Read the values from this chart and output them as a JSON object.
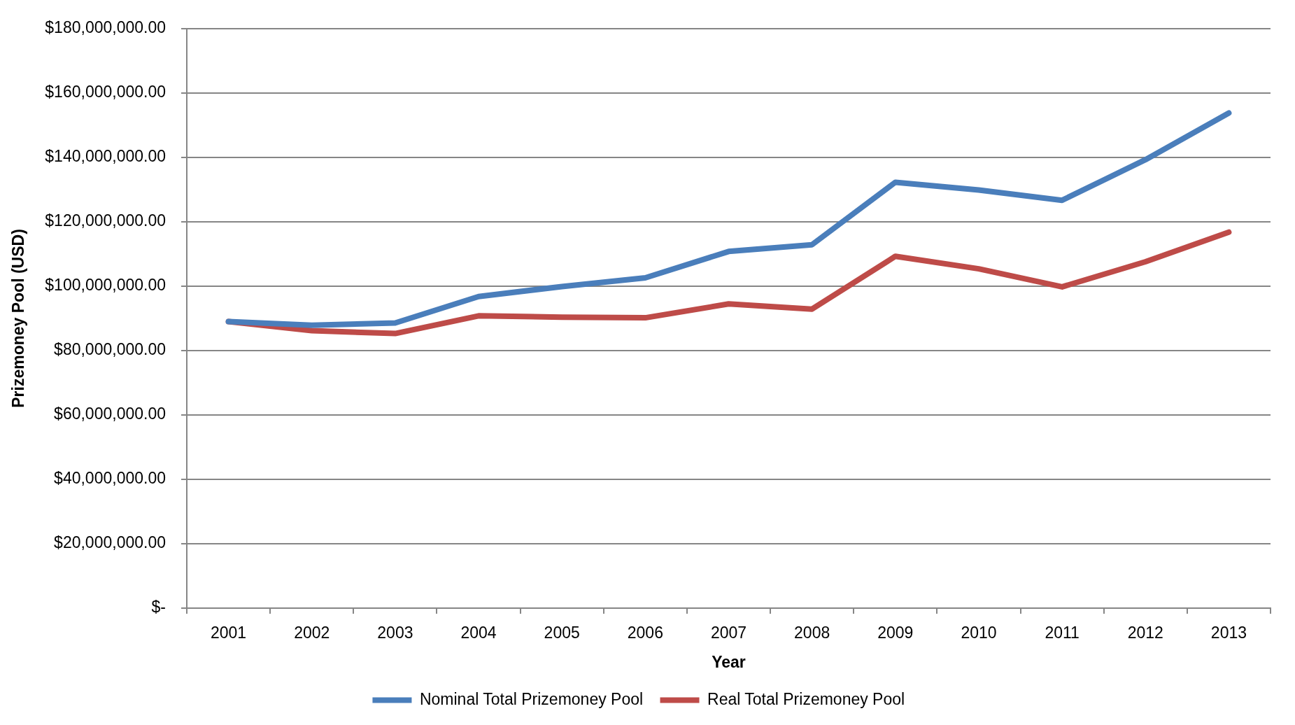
{
  "chart_data": {
    "type": "line",
    "xlabel": "Year",
    "ylabel": "Prizemoney Pool (USD)",
    "categories": [
      "2001",
      "2002",
      "2003",
      "2004",
      "2005",
      "2006",
      "2007",
      "2008",
      "2009",
      "2010",
      "2011",
      "2012",
      "2013"
    ],
    "series": [
      {
        "name": "Nominal Total Prizemoney Pool",
        "color": "#4a7ebb",
        "values": [
          89000000,
          87900000,
          88600000,
          96800000,
          99900000,
          102600000,
          110800000,
          112900000,
          132300000,
          129900000,
          126700000,
          139300000,
          153800000
        ]
      },
      {
        "name": "Real Total Prizemoney Pool",
        "color": "#be4b48",
        "values": [
          89000000,
          86200000,
          85300000,
          90800000,
          90400000,
          90200000,
          94500000,
          92900000,
          109300000,
          105400000,
          99800000,
          107600000,
          116800000
        ]
      }
    ],
    "ylim": [
      0,
      180000000
    ],
    "yticks": [
      {
        "value": 0,
        "label": "$-"
      },
      {
        "value": 20000000,
        "label": "$20,000,000.00"
      },
      {
        "value": 40000000,
        "label": "$40,000,000.00"
      },
      {
        "value": 60000000,
        "label": "$60,000,000.00"
      },
      {
        "value": 80000000,
        "label": "$80,000,000.00"
      },
      {
        "value": 100000000,
        "label": "$100,000,000.00"
      },
      {
        "value": 120000000,
        "label": "$120,000,000.00"
      },
      {
        "value": 140000000,
        "label": "$140,000,000.00"
      },
      {
        "value": 160000000,
        "label": "$160,000,000.00"
      },
      {
        "value": 180000000,
        "label": "$180,000,000.00"
      }
    ],
    "grid": "y",
    "legend": "bottom",
    "marker": "none",
    "line_style": "solid"
  }
}
